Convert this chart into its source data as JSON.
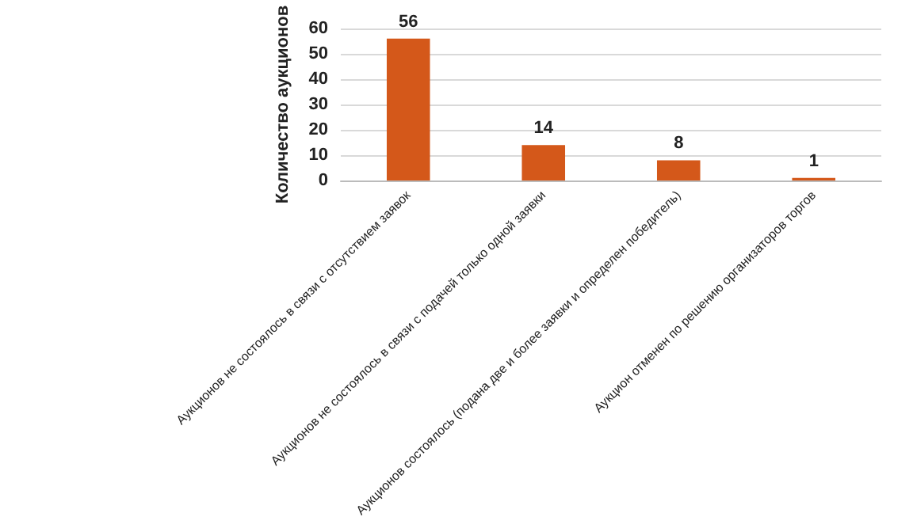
{
  "chart_data": {
    "type": "bar",
    "ylabel": "Количество аукционов",
    "categories": [
      "Аукционов не состоялось в связи с отсутствием заявок",
      "Аукционов не состоялось в связи с подачей только одной заявки",
      "Аукционов состоялось (подана две и более заявки и определен победитель)",
      "Аукцион отменен по решению организаторов торгов"
    ],
    "values": [
      56,
      14,
      8,
      1
    ],
    "color": "#d4581a",
    "ylim": [
      0,
      60
    ],
    "yticks": [
      0,
      10,
      20,
      30,
      40,
      50,
      60
    ],
    "grid": "y",
    "data_labels": true
  }
}
